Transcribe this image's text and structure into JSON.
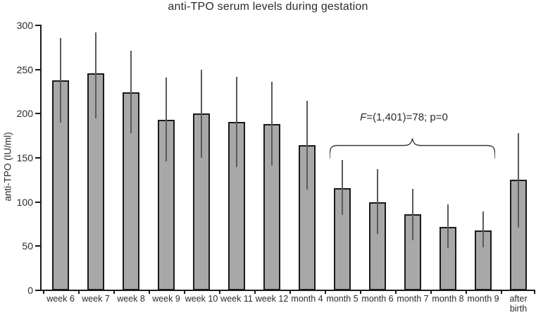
{
  "chart_data": {
    "type": "bar",
    "title": "anti-TPO serum levels during gestation",
    "xlabel": "",
    "ylabel": "anti-TPO (IU/ml)",
    "ylim": [
      0,
      300
    ],
    "yticks": [
      0,
      50,
      100,
      150,
      200,
      250,
      300
    ],
    "grid": false,
    "legend": "none",
    "categories": [
      "week 6",
      "week 7",
      "week 8",
      "week 9",
      "week 10",
      "week 11",
      "week 12",
      "month 4",
      "month 5",
      "month 6",
      "month 7",
      "month 8",
      "month 9",
      "after birth"
    ],
    "values": [
      238,
      246,
      224,
      193,
      200,
      191,
      188,
      164,
      116,
      100,
      86,
      72,
      68,
      125
    ],
    "error_low": [
      190,
      195,
      178,
      146,
      150,
      140,
      141,
      114,
      85,
      64,
      57,
      48,
      49,
      71
    ],
    "error_high": [
      286,
      292,
      271,
      241,
      250,
      242,
      236,
      215,
      148,
      137,
      115,
      97,
      89,
      178
    ],
    "bar_color": "#a8a8a8",
    "bar_border_color": "#1a1a1a",
    "error_color": "#5a5a5a",
    "annotation_text": "F=(1,401)=78; p=0"
  },
  "annotation": {
    "f_italic": "F",
    "rest": "=(1,401)=78; p=0",
    "brace_start_category": "month 5",
    "brace_end_category": "month 9"
  }
}
